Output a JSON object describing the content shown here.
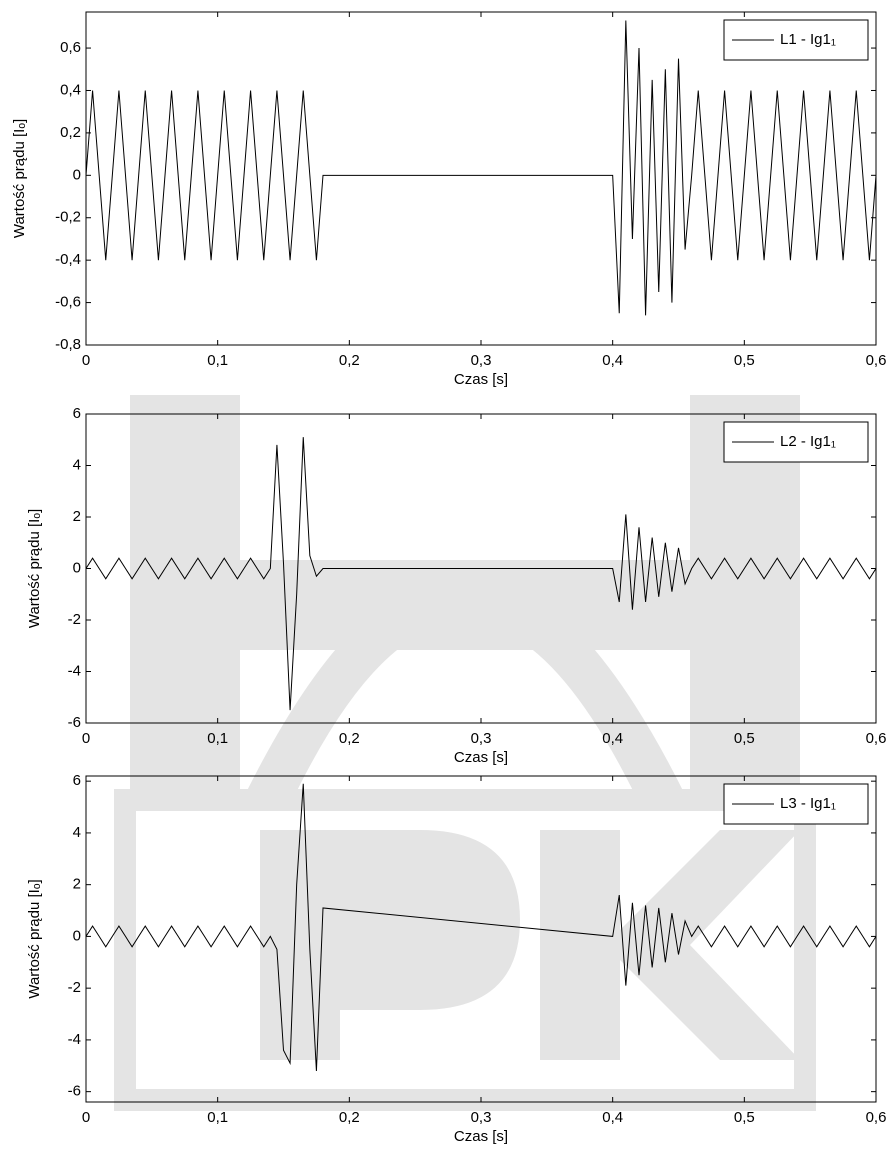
{
  "chart_data": [
    {
      "type": "line",
      "xlabel": "Czas [s]",
      "ylabel": "Wartość prądu [Iₒ]",
      "legend": "upper right",
      "xlim": [
        0,
        0.6
      ],
      "ylim": [
        -0.8,
        0.77
      ],
      "xticks": [
        0,
        {
          "value": 0.1,
          "label": "0,1"
        },
        {
          "value": 0.2,
          "label": "0,2"
        },
        {
          "value": 0.3,
          "label": "0,3"
        },
        {
          "value": 0.4,
          "label": "0,4"
        },
        {
          "value": 0.5,
          "label": "0,5"
        },
        {
          "value": 0.6,
          "label": "0,6"
        }
      ],
      "yticks": [
        {
          "value": -0.8,
          "label": "-0,8"
        },
        {
          "value": -0.6,
          "label": "-0,6"
        },
        {
          "value": -0.4,
          "label": "-0,4"
        },
        {
          "value": -0.2,
          "label": "-0,2"
        },
        0,
        {
          "value": 0.2,
          "label": "0,2"
        },
        {
          "value": 0.4,
          "label": "0,4"
        },
        {
          "value": 0.6,
          "label": "0,6"
        }
      ],
      "x": [
        0,
        0.005,
        0.01,
        0.015,
        0.02,
        0.025,
        0.03,
        0.035,
        0.04,
        0.045,
        0.05,
        0.055,
        0.06,
        0.065,
        0.07,
        0.075,
        0.08,
        0.085,
        0.09,
        0.095,
        0.1,
        0.105,
        0.11,
        0.115,
        0.12,
        0.125,
        0.13,
        0.135,
        0.14,
        0.145,
        0.15,
        0.155,
        0.16,
        0.165,
        0.17,
        0.175,
        0.18,
        0.4,
        0.405,
        0.41,
        0.415,
        0.42,
        0.425,
        0.43,
        0.435,
        0.44,
        0.445,
        0.45,
        0.455,
        0.46,
        0.465,
        0.47,
        0.475,
        0.48,
        0.485,
        0.49,
        0.495,
        0.5,
        0.505,
        0.51,
        0.515,
        0.52,
        0.525,
        0.53,
        0.535,
        0.54,
        0.545,
        0.55,
        0.555,
        0.56,
        0.565,
        0.57,
        0.575,
        0.58,
        0.585,
        0.59,
        0.595,
        0.6
      ],
      "series": [
        {
          "name": "L1 - Ig1₁",
          "color": "#000000",
          "values": [
            0,
            0.4,
            0,
            -0.4,
            0,
            0.4,
            0,
            -0.4,
            0,
            0.4,
            0,
            -0.4,
            0,
            0.4,
            0,
            -0.4,
            0,
            0.4,
            0,
            -0.4,
            0,
            0.4,
            0,
            -0.4,
            0,
            0.4,
            0,
            -0.4,
            0,
            0.4,
            0,
            -0.4,
            0,
            0.4,
            0,
            -0.4,
            0,
            0,
            -0.65,
            0.73,
            -0.3,
            0.6,
            -0.66,
            0.45,
            -0.55,
            0.5,
            -0.6,
            0.55,
            -0.35,
            0,
            0.4,
            0,
            -0.4,
            0,
            0.4,
            0,
            -0.4,
            0,
            0.4,
            0,
            -0.4,
            0,
            0.4,
            0,
            -0.4,
            0,
            0.4,
            0,
            -0.4,
            0,
            0.4,
            0,
            -0.4,
            0,
            0.4,
            0,
            -0.4,
            0
          ]
        }
      ]
    },
    {
      "type": "line",
      "xlabel": "Czas [s]",
      "ylabel": "Wartość prądu [Iₒ]",
      "legend": "upper right",
      "xlim": [
        0,
        0.6
      ],
      "ylim": [
        -6,
        6
      ],
      "xticks": [
        0,
        {
          "value": 0.1,
          "label": "0,1"
        },
        {
          "value": 0.2,
          "label": "0,2"
        },
        {
          "value": 0.3,
          "label": "0,3"
        },
        {
          "value": 0.4,
          "label": "0,4"
        },
        {
          "value": 0.5,
          "label": "0,5"
        },
        {
          "value": 0.6,
          "label": "0,6"
        }
      ],
      "yticks": [
        -6,
        -4,
        -2,
        0,
        2,
        4,
        6
      ],
      "x": [
        0,
        0.005,
        0.01,
        0.015,
        0.02,
        0.025,
        0.03,
        0.035,
        0.04,
        0.045,
        0.05,
        0.055,
        0.06,
        0.065,
        0.07,
        0.075,
        0.08,
        0.085,
        0.09,
        0.095,
        0.1,
        0.105,
        0.11,
        0.115,
        0.12,
        0.125,
        0.13,
        0.135,
        0.14,
        0.145,
        0.15,
        0.155,
        0.16,
        0.165,
        0.17,
        0.175,
        0.18,
        0.4,
        0.405,
        0.41,
        0.415,
        0.42,
        0.425,
        0.43,
        0.435,
        0.44,
        0.445,
        0.45,
        0.455,
        0.46,
        0.465,
        0.47,
        0.475,
        0.48,
        0.485,
        0.49,
        0.495,
        0.5,
        0.505,
        0.51,
        0.515,
        0.52,
        0.525,
        0.53,
        0.535,
        0.54,
        0.545,
        0.55,
        0.555,
        0.56,
        0.565,
        0.57,
        0.575,
        0.58,
        0.585,
        0.59,
        0.595,
        0.6
      ],
      "series": [
        {
          "name": "L2 - Ig1₁",
          "color": "#000000",
          "values": [
            0,
            0.4,
            0,
            -0.4,
            0,
            0.4,
            0,
            -0.4,
            0,
            0.4,
            0,
            -0.4,
            0,
            0.4,
            0,
            -0.4,
            0,
            0.4,
            0,
            -0.4,
            0,
            0.4,
            0,
            -0.4,
            0,
            0.4,
            0,
            -0.4,
            0,
            4.8,
            0.2,
            -5.5,
            -1,
            5.1,
            0.5,
            -0.3,
            0,
            0,
            -1.3,
            2.1,
            -1.6,
            1.6,
            -1.3,
            1.2,
            -1.1,
            1,
            -0.9,
            0.8,
            -0.6,
            0,
            0.4,
            0,
            -0.4,
            0,
            0.4,
            0,
            -0.4,
            0,
            0.4,
            0,
            -0.4,
            0,
            0.4,
            0,
            -0.4,
            0,
            0.4,
            0,
            -0.4,
            0,
            0.4,
            0,
            -0.4,
            0,
            0.4,
            0,
            -0.4,
            0
          ]
        }
      ]
    },
    {
      "type": "line",
      "xlabel": "Czas [s]",
      "ylabel": "Wartość prądu [Iₒ]",
      "legend": "upper right",
      "xlim": [
        0,
        0.6
      ],
      "ylim": [
        -6.4,
        6.2
      ],
      "xticks": [
        0,
        {
          "value": 0.1,
          "label": "0,1"
        },
        {
          "value": 0.2,
          "label": "0,2"
        },
        {
          "value": 0.3,
          "label": "0,3"
        },
        {
          "value": 0.4,
          "label": "0,4"
        },
        {
          "value": 0.5,
          "label": "0,5"
        },
        {
          "value": 0.6,
          "label": "0,6"
        }
      ],
      "yticks": [
        -6,
        -4,
        -2,
        0,
        2,
        4,
        6
      ],
      "x": [
        0,
        0.005,
        0.01,
        0.015,
        0.02,
        0.025,
        0.03,
        0.035,
        0.04,
        0.045,
        0.05,
        0.055,
        0.06,
        0.065,
        0.07,
        0.075,
        0.08,
        0.085,
        0.09,
        0.095,
        0.1,
        0.105,
        0.11,
        0.115,
        0.12,
        0.125,
        0.13,
        0.135,
        0.14,
        0.145,
        0.15,
        0.155,
        0.16,
        0.165,
        0.17,
        0.175,
        0.18,
        0.4,
        0.405,
        0.41,
        0.415,
        0.42,
        0.425,
        0.43,
        0.435,
        0.44,
        0.445,
        0.45,
        0.455,
        0.46,
        0.465,
        0.47,
        0.475,
        0.48,
        0.485,
        0.49,
        0.495,
        0.5,
        0.505,
        0.51,
        0.515,
        0.52,
        0.525,
        0.53,
        0.535,
        0.54,
        0.545,
        0.55,
        0.555,
        0.56,
        0.565,
        0.57,
        0.575,
        0.58,
        0.585,
        0.59,
        0.595,
        0.6
      ],
      "series": [
        {
          "name": "L3 - Ig1₁",
          "color": "#000000",
          "values": [
            0,
            0.4,
            0,
            -0.4,
            0,
            0.4,
            0,
            -0.4,
            0,
            0.4,
            0,
            -0.4,
            0,
            0.4,
            0,
            -0.4,
            0,
            0.4,
            0,
            -0.4,
            0,
            0.4,
            0,
            -0.4,
            0,
            0.4,
            0,
            -0.4,
            0,
            -0.5,
            -4.4,
            -4.9,
            2,
            5.9,
            -0.5,
            -5.2,
            1.1,
            0,
            1.6,
            -1.9,
            1.3,
            -1.5,
            1.2,
            -1.2,
            1.1,
            -1,
            0.9,
            -0.7,
            0.6,
            0,
            0.4,
            0,
            -0.4,
            0,
            0.4,
            0,
            -0.4,
            0,
            0.4,
            0,
            -0.4,
            0,
            0.4,
            0,
            -0.4,
            0,
            0.4,
            0,
            -0.4,
            0,
            0.4,
            0,
            -0.4,
            0,
            0.4,
            0,
            -0.4,
            0
          ]
        }
      ]
    }
  ]
}
